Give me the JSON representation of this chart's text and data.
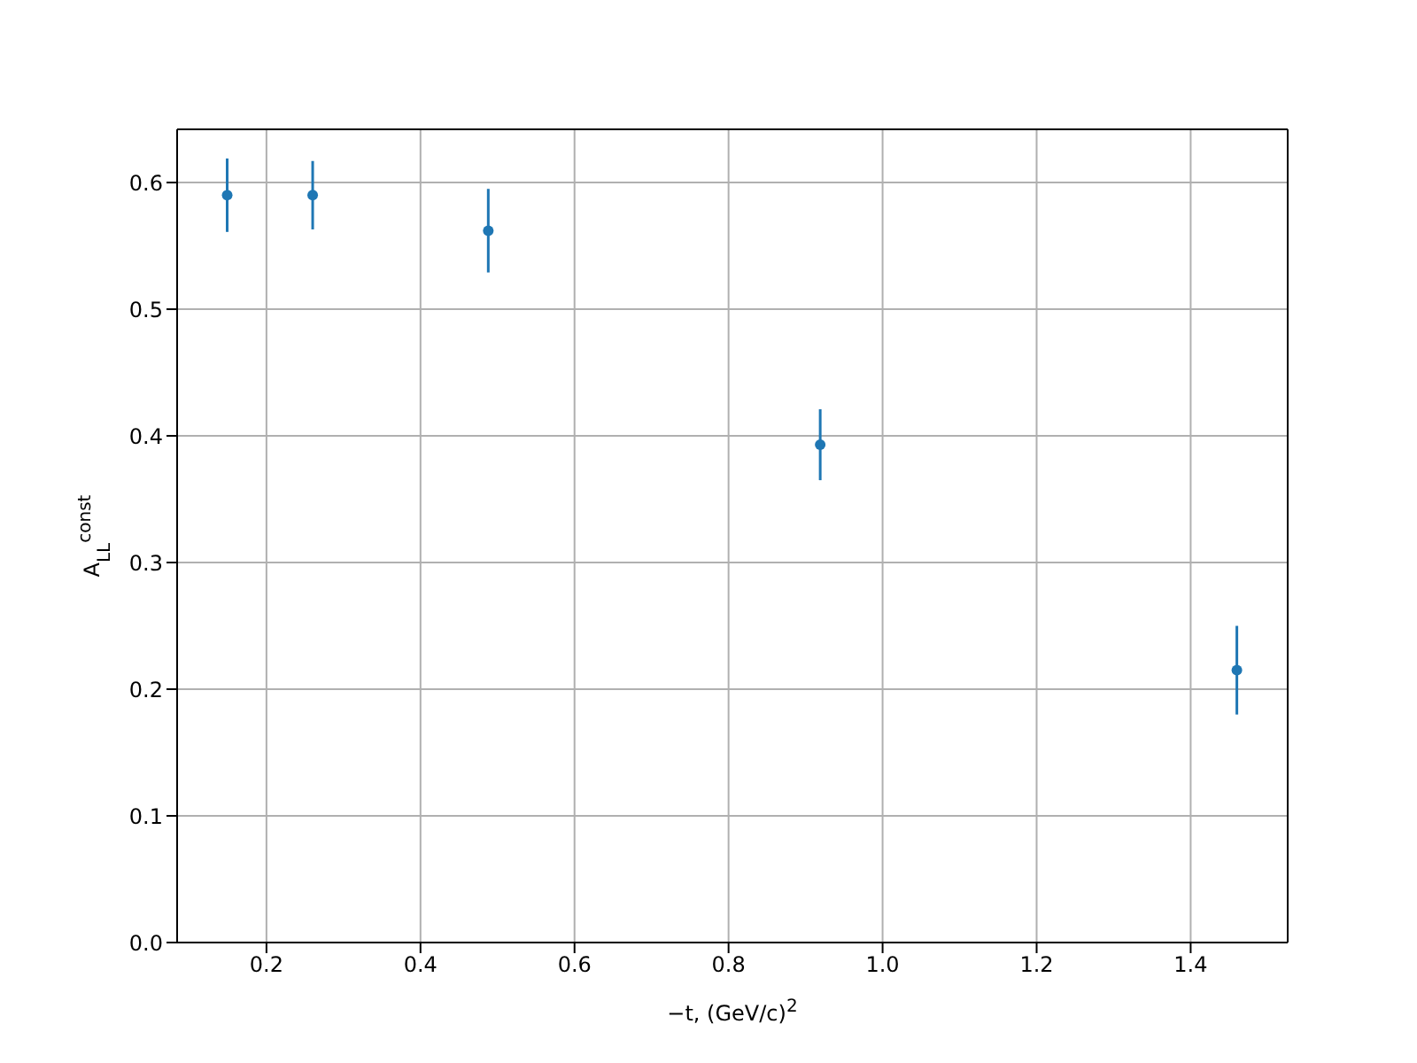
{
  "chart_data": {
    "type": "scatter",
    "xlabel": "−t, (GeV/c)$^{2}$",
    "ylabel": "A$_{LL}$$^{const}$",
    "x": [
      0.149,
      0.26,
      0.488,
      0.919,
      1.46
    ],
    "series": [
      {
        "color": "#1f77b4",
        "values": [
          0.59,
          0.59,
          0.562,
          0.393,
          0.215
        ],
        "errors": [
          0.029,
          0.027,
          0.033,
          0.028,
          0.035
        ]
      }
    ],
    "xlim": [
      0.084,
      1.526
    ],
    "ylim": [
      0,
      0.642
    ],
    "xticks": [
      0.2,
      0.4,
      0.6,
      0.8,
      {
        "value": 1,
        "label": "1.0"
      },
      1.2,
      1.4
    ],
    "yticks": [
      {
        "value": 0,
        "label": "0.0"
      },
      0.1,
      0.2,
      0.3,
      0.4,
      0.5,
      0.6
    ],
    "grid": true,
    "marker": "circle"
  }
}
